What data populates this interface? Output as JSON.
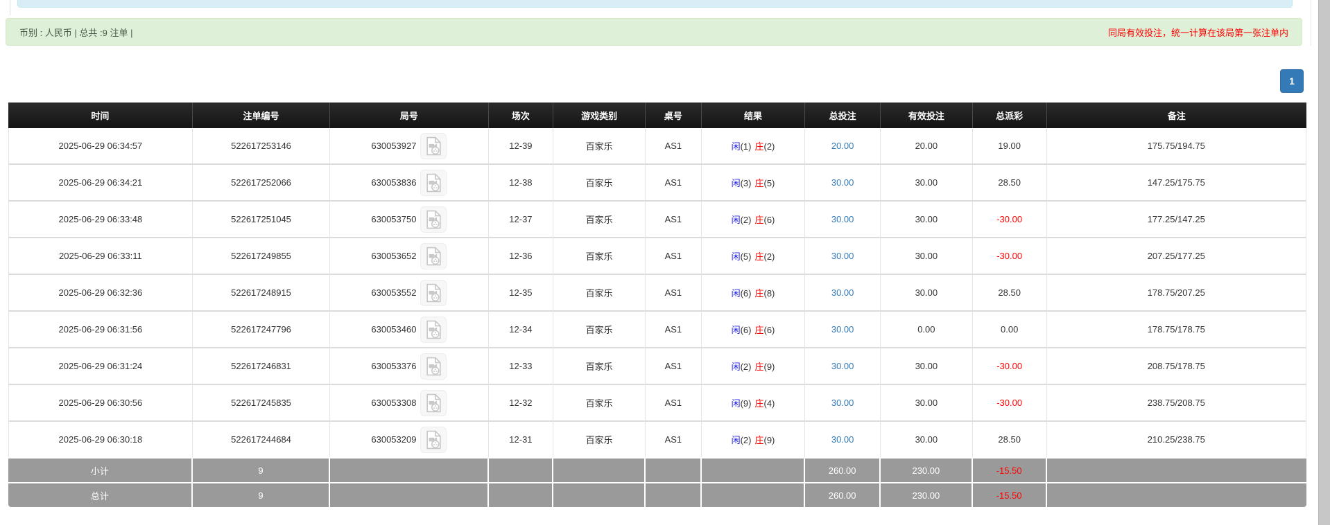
{
  "summary_bar": {
    "left_text": "币别 : 人民币 | 总共 :9 注单 |",
    "right_text": "同局有效投注，统一计算在该局第一张注单内",
    "background": "#dff0d8",
    "notice_color": "#ff0000"
  },
  "pagination": {
    "current_page": "1",
    "button_color": "#337ab7"
  },
  "table": {
    "headers": [
      "时间",
      "注单编号",
      "局号",
      "场次",
      "游戏类别",
      "桌号",
      "结果",
      "总投注",
      "有效投注",
      "总派彩",
      "备注"
    ],
    "header_bg": "#1d1d1d",
    "footer_bg": "#9a9a9a",
    "colors": {
      "player_blue": "#2323e6",
      "banker_red": "#ff0000",
      "bet_link_blue": "#337ab7",
      "negative_red": "#ff0000"
    },
    "icons": {
      "round_video_icon": "video-file-icon"
    },
    "rows": [
      {
        "time": "2025-06-29 06:34:57",
        "bet_id": "522617253146",
        "round_no": "630053927",
        "session": "12-39",
        "game_type": "百家乐",
        "table_no": "AS1",
        "result_player": "闲",
        "result_player_num": "(1)",
        "result_banker": "庄",
        "result_banker_num": "(2)",
        "total_bet": "20.00",
        "valid_bet": "20.00",
        "payout": "19.00",
        "remark": "175.75/194.75"
      },
      {
        "time": "2025-06-29 06:34:21",
        "bet_id": "522617252066",
        "round_no": "630053836",
        "session": "12-38",
        "game_type": "百家乐",
        "table_no": "AS1",
        "result_player": "闲",
        "result_player_num": "(3)",
        "result_banker": "庄",
        "result_banker_num": "(5)",
        "total_bet": "30.00",
        "valid_bet": "30.00",
        "payout": "28.50",
        "remark": "147.25/175.75"
      },
      {
        "time": "2025-06-29 06:33:48",
        "bet_id": "522617251045",
        "round_no": "630053750",
        "session": "12-37",
        "game_type": "百家乐",
        "table_no": "AS1",
        "result_player": "闲",
        "result_player_num": "(2)",
        "result_banker": "庄",
        "result_banker_num": "(6)",
        "total_bet": "30.00",
        "valid_bet": "30.00",
        "payout": "-30.00",
        "remark": "177.25/147.25"
      },
      {
        "time": "2025-06-29 06:33:11",
        "bet_id": "522617249855",
        "round_no": "630053652",
        "session": "12-36",
        "game_type": "百家乐",
        "table_no": "AS1",
        "result_player": "闲",
        "result_player_num": "(5)",
        "result_banker": "庄",
        "result_banker_num": "(2)",
        "total_bet": "30.00",
        "valid_bet": "30.00",
        "payout": "-30.00",
        "remark": "207.25/177.25"
      },
      {
        "time": "2025-06-29 06:32:36",
        "bet_id": "522617248915",
        "round_no": "630053552",
        "session": "12-35",
        "game_type": "百家乐",
        "table_no": "AS1",
        "result_player": "闲",
        "result_player_num": "(6)",
        "result_banker": "庄",
        "result_banker_num": "(8)",
        "total_bet": "30.00",
        "valid_bet": "30.00",
        "payout": "28.50",
        "remark": "178.75/207.25"
      },
      {
        "time": "2025-06-29 06:31:56",
        "bet_id": "522617247796",
        "round_no": "630053460",
        "session": "12-34",
        "game_type": "百家乐",
        "table_no": "AS1",
        "result_player": "闲",
        "result_player_num": "(6)",
        "result_banker": "庄",
        "result_banker_num": "(6)",
        "total_bet": "30.00",
        "valid_bet": "0.00",
        "payout": "0.00",
        "remark": "178.75/178.75"
      },
      {
        "time": "2025-06-29 06:31:24",
        "bet_id": "522617246831",
        "round_no": "630053376",
        "session": "12-33",
        "game_type": "百家乐",
        "table_no": "AS1",
        "result_player": "闲",
        "result_player_num": "(2)",
        "result_banker": "庄",
        "result_banker_num": "(9)",
        "total_bet": "30.00",
        "valid_bet": "30.00",
        "payout": "-30.00",
        "remark": "208.75/178.75"
      },
      {
        "time": "2025-06-29 06:30:56",
        "bet_id": "522617245835",
        "round_no": "630053308",
        "session": "12-32",
        "game_type": "百家乐",
        "table_no": "AS1",
        "result_player": "闲",
        "result_player_num": "(9)",
        "result_banker": "庄",
        "result_banker_num": "(4)",
        "total_bet": "30.00",
        "valid_bet": "30.00",
        "payout": "-30.00",
        "remark": "238.75/208.75"
      },
      {
        "time": "2025-06-29 06:30:18",
        "bet_id": "522617244684",
        "round_no": "630053209",
        "session": "12-31",
        "game_type": "百家乐",
        "table_no": "AS1",
        "result_player": "闲",
        "result_player_num": "(2)",
        "result_banker": "庄",
        "result_banker_num": "(9)",
        "total_bet": "30.00",
        "valid_bet": "30.00",
        "payout": "28.50",
        "remark": "210.25/238.75"
      }
    ],
    "footer_rows": [
      {
        "label": "小计",
        "count": "9",
        "total_bet": "260.00",
        "valid_bet": "230.00",
        "payout": "-15.50",
        "remark": ""
      },
      {
        "label": "总计",
        "count": "9",
        "total_bet": "260.00",
        "valid_bet": "230.00",
        "payout": "-15.50",
        "remark": ""
      }
    ]
  }
}
